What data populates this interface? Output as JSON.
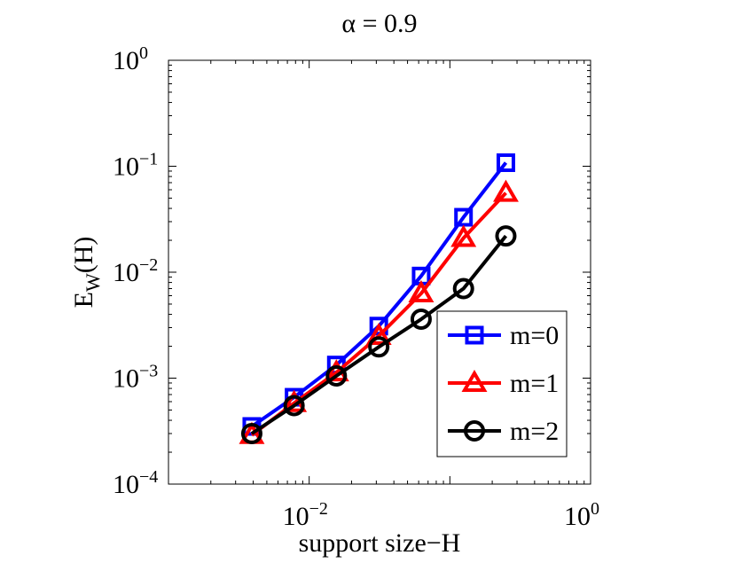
{
  "chart_data": {
    "type": "line",
    "title": "α = 0.9",
    "xlabel": "support size−H",
    "ylabel": {
      "base": "E",
      "sub": "W",
      "rest": "(H)"
    },
    "xscale": "log",
    "yscale": "log",
    "xlim": [
      0.001,
      1
    ],
    "ylim": [
      0.0001,
      1
    ],
    "grid": false,
    "legend_position": "lower-right",
    "x_ticks": [
      {
        "value": 0.01,
        "base": "10",
        "exp": "−2"
      },
      {
        "value": 1,
        "base": "10",
        "exp": "0"
      }
    ],
    "y_ticks": [
      {
        "value": 0.0001,
        "base": "10",
        "exp": "−4"
      },
      {
        "value": 0.001,
        "base": "10",
        "exp": "−3"
      },
      {
        "value": 0.01,
        "base": "10",
        "exp": "−2"
      },
      {
        "value": 0.1,
        "base": "10",
        "exp": "−1"
      },
      {
        "value": 1,
        "base": "10",
        "exp": "0"
      }
    ],
    "x": [
      0.00391,
      0.00781,
      0.0156,
      0.03125,
      0.0625,
      0.125,
      0.25
    ],
    "series": [
      {
        "name": "m=0",
        "color": "#0000ff",
        "marker": "square",
        "values": [
          0.00035,
          0.00066,
          0.00133,
          0.0031,
          0.0092,
          0.033,
          0.108
        ]
      },
      {
        "name": "m=1",
        "color": "#ff0000",
        "marker": "triangle",
        "values": [
          0.00029,
          0.00058,
          0.00113,
          0.0025,
          0.0063,
          0.021,
          0.056
        ]
      },
      {
        "name": "m=2",
        "color": "#000000",
        "marker": "circle",
        "values": [
          0.0003,
          0.00055,
          0.00105,
          0.00197,
          0.0036,
          0.007,
          0.022
        ]
      }
    ]
  }
}
